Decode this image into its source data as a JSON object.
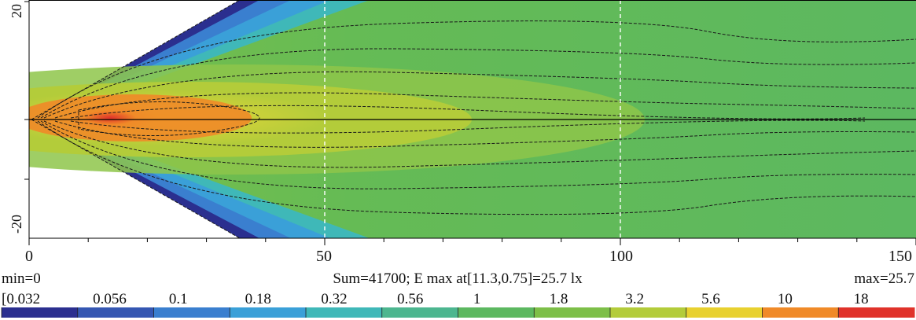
{
  "chart_data": {
    "type": "heatmap",
    "title": "",
    "xlabel": "",
    "ylabel": "",
    "xlim": [
      0,
      150
    ],
    "ylim": [
      -20,
      20
    ],
    "x_ticks": [
      "0",
      "50",
      "100",
      "150"
    ],
    "y_ticks": [
      "20",
      "-20"
    ],
    "min_text": "min=0",
    "max_text": "max=25.7",
    "summary_text": "Sum=41700; E max at[11.3,0.75]=25.7 lx",
    "legend_labels": [
      "[0.032",
      "0.056",
      "0.1",
      "0.18",
      "0.32",
      "0.56",
      "1",
      "1.8",
      "3.2",
      "5.6",
      "10",
      "18"
    ],
    "legend_colors": [
      "#2b2f8f",
      "#3557b2",
      "#3a7fcf",
      "#3aa0d8",
      "#3fb8b8",
      "#4cb68f",
      "#5cb860",
      "#7dbf48",
      "#b3cc3a",
      "#e8d12f",
      "#f08a28",
      "#e0322a"
    ],
    "max_point": {
      "x": 11.3,
      "y": 0.75,
      "value": 25.7
    },
    "grid_dashed_x": [
      50,
      100
    ]
  }
}
